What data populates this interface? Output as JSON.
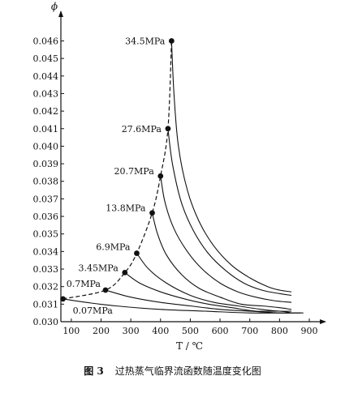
{
  "caption": {
    "figure_label": "图 3",
    "text": "过热蒸气临界流函数随温度变化图"
  },
  "chart_data": {
    "type": "line",
    "title": "",
    "xlabel": "T / ℃",
    "ylabel": "ϕ",
    "xlim": [
      65,
      930
    ],
    "ylim": [
      0.03,
      0.0475
    ],
    "x_ticks": [
      100,
      200,
      300,
      400,
      500,
      600,
      700,
      800,
      900
    ],
    "y_ticks": [
      0.03,
      0.031,
      0.032,
      0.033,
      0.034,
      0.035,
      0.036,
      0.037,
      0.038,
      0.039,
      0.04,
      0.041,
      0.042,
      0.043,
      0.044,
      0.045,
      0.046
    ],
    "y_tick_labels": [
      "0.030",
      "0.031",
      "0.032",
      "0.033",
      "0.034",
      "0.035",
      "0.036",
      "0.037",
      "0.038",
      "0.039",
      "0.040",
      "0.041",
      "0.042",
      "0.043",
      "0.044",
      "0.045",
      "0.046"
    ],
    "grid": false,
    "series": [
      {
        "name": "34.5MPa",
        "x": [
          437,
          445,
          460,
          490,
          530,
          580,
          640,
          700,
          760,
          800,
          840
        ],
        "y": [
          0.046,
          0.043,
          0.04,
          0.0375,
          0.0357,
          0.0343,
          0.0332,
          0.0325,
          0.032,
          0.0318,
          0.0317
        ]
      },
      {
        "name": "27.6MPa",
        "x": [
          425,
          440,
          470,
          510,
          560,
          620,
          680,
          740,
          800,
          840
        ],
        "y": [
          0.041,
          0.039,
          0.0368,
          0.0352,
          0.0339,
          0.0329,
          0.0322,
          0.0318,
          0.0316,
          0.0315
        ]
      },
      {
        "name": "20.7MPa",
        "x": [
          400,
          415,
          445,
          490,
          540,
          600,
          660,
          720,
          780,
          840
        ],
        "y": [
          0.0383,
          0.0368,
          0.0353,
          0.034,
          0.033,
          0.0322,
          0.0317,
          0.0314,
          0.0312,
          0.0311
        ]
      },
      {
        "name": "13.8MPa",
        "x": [
          372,
          390,
          420,
          470,
          530,
          600,
          670,
          740,
          800,
          840
        ],
        "y": [
          0.0362,
          0.035,
          0.0338,
          0.0327,
          0.0319,
          0.0314,
          0.031,
          0.0309,
          0.0308,
          0.0307
        ]
      },
      {
        "name": "6.9MPa",
        "x": [
          320,
          360,
          420,
          500,
          580,
          660,
          740,
          800,
          840
        ],
        "y": [
          0.0339,
          0.033,
          0.0322,
          0.0315,
          0.0311,
          0.0309,
          0.0307,
          0.0306,
          0.0306
        ]
      },
      {
        "name": "3.45MPa",
        "x": [
          280,
          330,
          400,
          480,
          560,
          640,
          720,
          800,
          840
        ],
        "y": [
          0.0328,
          0.0322,
          0.0317,
          0.0313,
          0.031,
          0.0308,
          0.0306,
          0.0306,
          0.0305
        ]
      },
      {
        "name": "0.7MPa",
        "x": [
          215,
          300,
          400,
          500,
          600,
          700,
          800,
          870
        ],
        "y": [
          0.0318,
          0.0314,
          0.0311,
          0.0309,
          0.0307,
          0.0306,
          0.0305,
          0.0305
        ]
      },
      {
        "name": "0.07MPa",
        "x": [
          72,
          150,
          250,
          400,
          550,
          700,
          850,
          880
        ],
        "y": [
          0.0313,
          0.0311,
          0.0309,
          0.0307,
          0.0306,
          0.0305,
          0.0305,
          0.0305
        ]
      }
    ],
    "critical_points": {
      "x": [
        437,
        425,
        400,
        372,
        320,
        280,
        215,
        72
      ],
      "y": [
        0.046,
        0.041,
        0.0383,
        0.0362,
        0.0339,
        0.0328,
        0.0318,
        0.0313
      ]
    }
  }
}
